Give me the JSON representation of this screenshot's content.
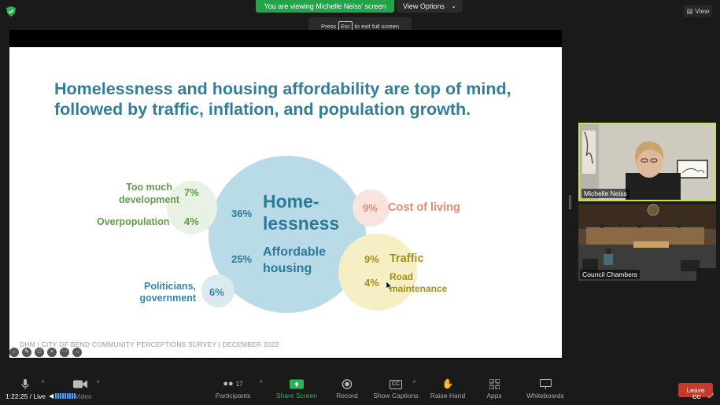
{
  "top_bar": {
    "banner_text": "You are viewing Michelle Neiss' screen",
    "view_options_label": "View Options",
    "esc_tip": {
      "prefix": "Press",
      "key": "Esc",
      "suffix": "to exit full screen"
    },
    "view_label": "View"
  },
  "slide": {
    "headline_line1": "Homelessness and housing affordability are top of mind,",
    "headline_line2": "followed by traffic, inflation, and population growth.",
    "items": {
      "too_much_development": {
        "label_line1": "Too much",
        "label_line2": "development",
        "pct": "7%"
      },
      "overpopulation": {
        "label": "Overpopulation",
        "pct": "4%"
      },
      "politicians": {
        "label_line1": "Politicians,",
        "label_line2": "government",
        "pct": "6%"
      },
      "homelessness": {
        "label_line1": "Home-",
        "label_line2": "lessness",
        "pct": "36%"
      },
      "affordable_housing": {
        "label_line1": "Affordable",
        "label_line2": "housing",
        "pct": "25%"
      },
      "cost_of_living": {
        "label": "Cost of living",
        "pct": "9%"
      },
      "traffic": {
        "label": "Traffic",
        "pct": "9%"
      },
      "road_maintenance": {
        "label_line1": "Road",
        "label_line2": "maintenance",
        "pct": "4%"
      }
    },
    "footer": "DHM | CITY OF BEND COMMUNITY PERCEPTIONS SURVEY | DECEMBER 2022"
  },
  "tiles": [
    {
      "name": "Michelle Neiss"
    },
    {
      "name": "Council Chambers"
    }
  ],
  "toolbar": {
    "timer": "1:22:25 / Live",
    "video_label": "Video",
    "participants_count": "17",
    "participants_label": "Participants",
    "share_label": "Share Screen",
    "record_label": "Record",
    "captions_icon": "CC",
    "captions_label": "Show Captions",
    "raise_hand_label": "Raise Hand",
    "apps_label": "Apps",
    "whiteboards_label": "Whiteboards",
    "leave_label": "Leave",
    "cc_corner": "CC"
  },
  "colors": {
    "banner": "#23a34a",
    "headline": "#2f7f9a",
    "active_speaker_border": "#c8e34f",
    "leave": "#c53a2a"
  },
  "icons": [
    "shield-icon",
    "chevron-down-icon",
    "view-icon",
    "microphone-icon",
    "camera-icon",
    "participants-icon",
    "share-screen-icon",
    "record-icon",
    "captions-icon",
    "raise-hand-icon",
    "apps-icon",
    "whiteboards-icon",
    "speaker-icon",
    "expand-icon",
    "cursor-icon"
  ]
}
